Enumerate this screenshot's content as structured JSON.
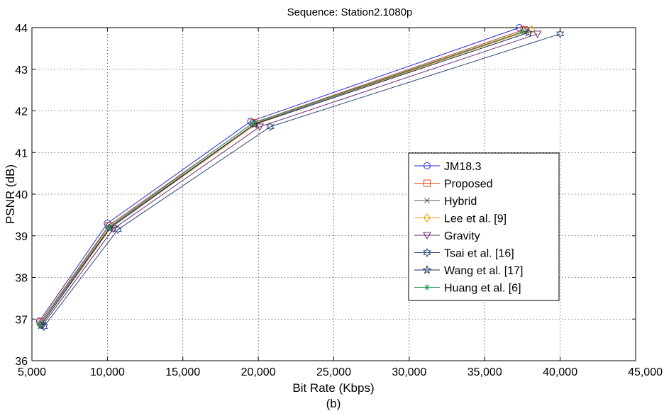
{
  "chart_data": {
    "type": "line",
    "title": "Sequence: Station2.1080p",
    "xlabel": "Bit Rate (Kbps)",
    "ylabel": "PSNR (dB)",
    "caption": "(b)",
    "xlim": [
      5000,
      45000
    ],
    "ylim": [
      36,
      44
    ],
    "x_ticks": [
      5000,
      10000,
      15000,
      20000,
      25000,
      30000,
      35000,
      40000,
      45000
    ],
    "x_tick_labels": [
      "5,000",
      "10,000",
      "15,000",
      "20,000",
      "25,000",
      "30,000",
      "35,000",
      "40,000",
      "45,000"
    ],
    "y_ticks": [
      36,
      37,
      38,
      39,
      40,
      41,
      42,
      43,
      44
    ],
    "y_tick_labels": [
      "36",
      "37",
      "38",
      "39",
      "40",
      "41",
      "42",
      "43",
      "44"
    ],
    "grid": true,
    "legend_position": "right-middle",
    "series": [
      {
        "name": "JM18.3",
        "color": "#2b2bd6",
        "marker": "circle",
        "points": [
          [
            5500,
            36.95
          ],
          [
            10000,
            39.3
          ],
          [
            19500,
            41.75
          ],
          [
            37300,
            44.0
          ]
        ]
      },
      {
        "name": "Proposed",
        "color": "#e0401e",
        "marker": "square",
        "points": [
          [
            5550,
            36.93
          ],
          [
            10100,
            39.25
          ],
          [
            19700,
            41.72
          ],
          [
            37600,
            43.95
          ]
        ]
      },
      {
        "name": "Hybrid",
        "color": "#555555",
        "marker": "x",
        "points": [
          [
            5600,
            36.9
          ],
          [
            10200,
            39.22
          ],
          [
            19800,
            41.7
          ],
          [
            37800,
            43.93
          ]
        ]
      },
      {
        "name": "Lee et al. [9]",
        "color": "#f0960a",
        "marker": "diamond",
        "points": [
          [
            5650,
            36.88
          ],
          [
            10250,
            39.2
          ],
          [
            19850,
            41.68
          ],
          [
            38100,
            43.95
          ]
        ]
      },
      {
        "name": "Gravity",
        "color": "#6a2a7a",
        "marker": "triangle-down",
        "points": [
          [
            5700,
            36.85
          ],
          [
            10400,
            39.17
          ],
          [
            20100,
            41.62
          ],
          [
            38500,
            43.85
          ]
        ]
      },
      {
        "name": "Tsai et al. [16]",
        "color": "#2a4a7a",
        "marker": "hexagram",
        "points": [
          [
            5800,
            36.82
          ],
          [
            10700,
            39.15
          ],
          [
            20800,
            41.62
          ],
          [
            40000,
            43.85
          ]
        ]
      },
      {
        "name": "Wang et al. [17]",
        "color": "#1e2f6a",
        "marker": "star",
        "points": [
          [
            5600,
            36.85
          ],
          [
            10150,
            39.18
          ],
          [
            19750,
            41.68
          ],
          [
            37900,
            43.88
          ]
        ]
      },
      {
        "name": "Huang et al. [6]",
        "color": "#2a9a5a",
        "marker": "asterisk",
        "points": [
          [
            5520,
            36.87
          ],
          [
            10050,
            39.2
          ],
          [
            19600,
            41.7
          ],
          [
            37500,
            43.9
          ]
        ]
      }
    ]
  }
}
